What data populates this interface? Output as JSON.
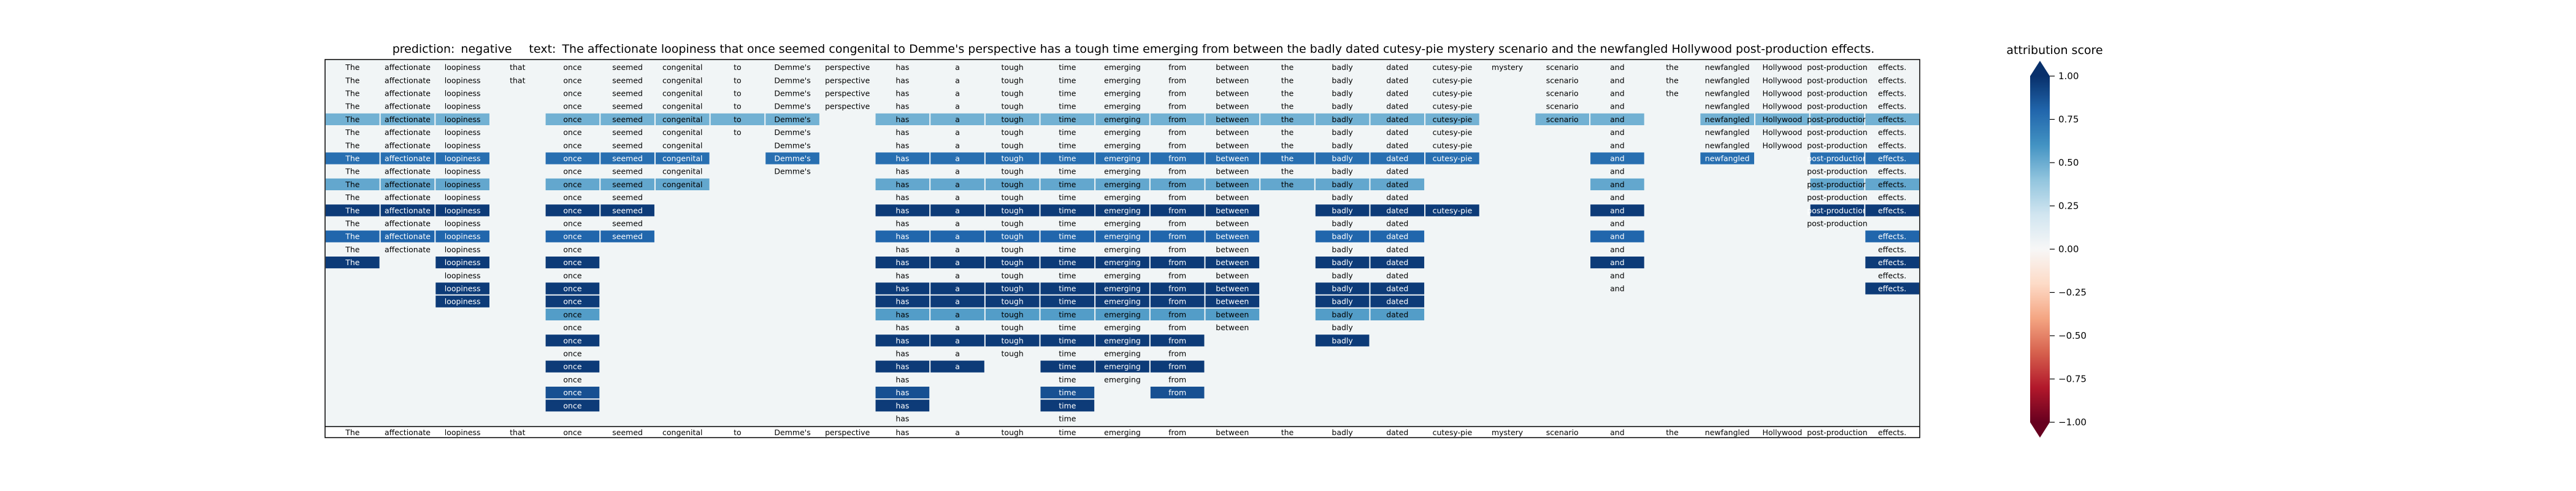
{
  "title": {
    "prediction_label": "prediction:",
    "prediction_value": "negative",
    "text_label": "text:",
    "text_value": "The affectionate loopiness that once seemed congenital to Demme's perspective has a tough time emerging from between the badly dated cutesy-pie mystery scenario and the newfangled Hollywood post-production effects."
  },
  "colorbar": {
    "title": "attribution score",
    "ticks": [
      "1.00",
      "0.75",
      "0.50",
      "0.25",
      "0.00",
      "−0.25",
      "−0.50",
      "−0.75",
      "−1.00"
    ],
    "tick_values": [
      1.0,
      0.75,
      0.5,
      0.25,
      0.0,
      -0.25,
      -0.5,
      -0.75,
      -1.0
    ],
    "colors": [
      "#08306b",
      "#2166ac",
      "#4393c3",
      "#92c5de",
      "#d1e5f0",
      "#f7f7f7",
      "#fddbc7",
      "#f4a582",
      "#d6604d",
      "#b2182b",
      "#67001f"
    ],
    "vmin": -1.0,
    "vmax": 1.0
  },
  "chart_data": {
    "type": "heatmap",
    "description_rows": "Each row is a progressively reduced version of the sentence; empty cells are removed tokens. Cell value = attribution score in [-1, 1].",
    "tokens": [
      "The",
      "affectionate",
      "loopiness",
      "that",
      "once",
      "seemed",
      "congenital",
      "to",
      "Demme's",
      "perspective",
      "has",
      "a",
      "tough",
      "time",
      "emerging",
      "from",
      "between",
      "the",
      "badly",
      "dated",
      "cutesy-pie",
      "mystery",
      "scenario",
      "and",
      "the",
      "newfangled",
      "Hollywood",
      "post-production",
      "effects."
    ],
    "rows": [
      {
        "present": [
          0,
          1,
          2,
          3,
          4,
          5,
          6,
          7,
          8,
          9,
          10,
          11,
          12,
          13,
          14,
          15,
          16,
          17,
          18,
          19,
          20,
          21,
          22,
          23,
          24,
          25,
          26,
          27,
          28
        ],
        "values": {}
      },
      {
        "present": [
          0,
          1,
          2,
          3,
          4,
          5,
          6,
          7,
          8,
          9,
          10,
          11,
          12,
          13,
          14,
          15,
          16,
          17,
          18,
          19,
          20,
          22,
          23,
          24,
          25,
          26,
          27,
          28
        ],
        "values": {}
      },
      {
        "present": [
          0,
          1,
          2,
          4,
          5,
          6,
          7,
          8,
          9,
          10,
          11,
          12,
          13,
          14,
          15,
          16,
          17,
          18,
          19,
          20,
          22,
          23,
          24,
          25,
          26,
          27,
          28
        ],
        "values": {}
      },
      {
        "present": [
          0,
          1,
          2,
          4,
          5,
          6,
          7,
          8,
          9,
          10,
          11,
          12,
          13,
          14,
          15,
          16,
          17,
          18,
          19,
          20,
          22,
          23,
          25,
          26,
          27,
          28
        ],
        "values": {}
      },
      {
        "present": [
          0,
          1,
          2,
          4,
          5,
          6,
          7,
          8,
          10,
          11,
          12,
          13,
          14,
          15,
          16,
          17,
          18,
          19,
          20,
          22,
          23,
          25,
          26,
          27,
          28
        ],
        "values": {
          "0": 0.35,
          "1": 0.35,
          "2": 0.35,
          "4": 0.35,
          "5": 0.35,
          "6": 0.35,
          "7": 0.35,
          "8": 0.35,
          "10": 0.35,
          "11": 0.35,
          "12": 0.35,
          "13": 0.35,
          "14": 0.35,
          "15": 0.35,
          "16": 0.35,
          "17": 0.35,
          "18": 0.35,
          "19": 0.35,
          "20": 0.35,
          "22": 0.35,
          "23": 0.35,
          "25": 0.35,
          "26": 0.35,
          "27": 0.35,
          "28": 0.35
        }
      },
      {
        "present": [
          0,
          1,
          2,
          4,
          5,
          6,
          7,
          8,
          10,
          11,
          12,
          13,
          14,
          15,
          16,
          17,
          18,
          19,
          20,
          23,
          25,
          26,
          27,
          28
        ],
        "values": {}
      },
      {
        "present": [
          0,
          1,
          2,
          4,
          5,
          6,
          8,
          10,
          11,
          12,
          13,
          14,
          15,
          16,
          17,
          18,
          19,
          20,
          23,
          25,
          26,
          27,
          28
        ],
        "values": {}
      },
      {
        "present": [
          0,
          1,
          2,
          4,
          5,
          6,
          8,
          10,
          11,
          12,
          13,
          14,
          15,
          16,
          17,
          18,
          19,
          20,
          23,
          25,
          27,
          28
        ],
        "values": {
          "0": 0.7,
          "1": 0.7,
          "2": 0.7,
          "4": 0.7,
          "5": 0.7,
          "6": 0.7,
          "8": 0.7,
          "10": 0.7,
          "11": 0.7,
          "12": 0.7,
          "13": 0.7,
          "14": 0.7,
          "15": 0.7,
          "16": 0.7,
          "17": 0.7,
          "18": 0.7,
          "19": 0.7,
          "20": 0.7,
          "23": 0.7,
          "25": 0.7,
          "27": 0.7,
          "28": 0.7
        }
      },
      {
        "present": [
          0,
          1,
          2,
          4,
          5,
          6,
          8,
          10,
          11,
          12,
          13,
          14,
          15,
          16,
          17,
          18,
          19,
          23,
          27,
          28
        ],
        "values": {}
      },
      {
        "present": [
          0,
          1,
          2,
          4,
          5,
          6,
          10,
          11,
          12,
          13,
          14,
          15,
          16,
          17,
          18,
          19,
          23,
          27,
          28
        ],
        "values": {
          "0": 0.4,
          "1": 0.4,
          "2": 0.4,
          "4": 0.4,
          "5": 0.4,
          "6": 0.4,
          "10": 0.4,
          "11": 0.4,
          "12": 0.4,
          "13": 0.4,
          "14": 0.4,
          "15": 0.4,
          "16": 0.4,
          "17": 0.4,
          "18": 0.4,
          "19": 0.4,
          "23": 0.4,
          "27": 0.4,
          "28": 0.4
        }
      },
      {
        "present": [
          0,
          1,
          2,
          4,
          5,
          10,
          11,
          12,
          13,
          14,
          15,
          16,
          18,
          19,
          23,
          27,
          28
        ],
        "values": {}
      },
      {
        "present": [
          0,
          1,
          2,
          4,
          5,
          10,
          11,
          12,
          13,
          14,
          15,
          16,
          18,
          19,
          20,
          23,
          27,
          28
        ],
        "values": {
          "0": 0.95,
          "1": 0.95,
          "2": 0.95,
          "4": 0.95,
          "5": 0.95,
          "10": 0.95,
          "11": 0.95,
          "12": 0.95,
          "13": 0.95,
          "14": 0.95,
          "15": 0.95,
          "16": 0.95,
          "18": 0.95,
          "19": 0.95,
          "20": 0.95,
          "23": 0.95,
          "27": 0.95,
          "28": 0.95
        }
      },
      {
        "present": [
          0,
          1,
          2,
          4,
          5,
          10,
          11,
          12,
          13,
          14,
          15,
          16,
          18,
          19,
          23,
          27
        ],
        "values": {}
      },
      {
        "present": [
          0,
          1,
          2,
          4,
          5,
          10,
          11,
          12,
          13,
          14,
          15,
          16,
          18,
          19,
          23,
          28
        ],
        "values": {
          "0": 0.75,
          "1": 0.75,
          "2": 0.75,
          "4": 0.75,
          "5": 0.75,
          "10": 0.75,
          "11": 0.75,
          "12": 0.75,
          "13": 0.75,
          "14": 0.75,
          "15": 0.75,
          "16": 0.75,
          "18": 0.75,
          "19": 0.75,
          "23": 0.75,
          "28": 0.75
        }
      },
      {
        "present": [
          0,
          1,
          2,
          4,
          10,
          11,
          12,
          13,
          14,
          15,
          16,
          18,
          19,
          23,
          28
        ],
        "values": {}
      },
      {
        "present": [
          0,
          2,
          4,
          10,
          11,
          12,
          13,
          14,
          15,
          16,
          18,
          19,
          23,
          28
        ],
        "values": {
          "0": 0.95,
          "2": 0.95,
          "4": 0.95,
          "10": 0.95,
          "11": 0.95,
          "12": 0.95,
          "13": 0.95,
          "14": 0.95,
          "15": 0.95,
          "16": 0.95,
          "18": 0.95,
          "19": 0.95,
          "23": 0.95,
          "28": 0.95
        }
      },
      {
        "present": [
          2,
          4,
          10,
          11,
          12,
          13,
          14,
          15,
          16,
          18,
          19,
          23,
          28
        ],
        "values": {}
      },
      {
        "present": [
          2,
          4,
          10,
          11,
          12,
          13,
          14,
          15,
          16,
          18,
          19,
          23,
          28
        ],
        "values": {
          "2": 0.95,
          "4": 0.95,
          "10": 0.95,
          "11": 0.95,
          "12": 0.95,
          "13": 0.95,
          "14": 0.95,
          "15": 0.95,
          "16": 0.95,
          "18": 0.95,
          "19": 0.95,
          "23": 0.05,
          "28": 0.95
        }
      },
      {
        "present": [
          2,
          4,
          10,
          11,
          12,
          13,
          14,
          15,
          16,
          18,
          19
        ],
        "values": {
          "2": 0.95,
          "4": 0.95,
          "10": 0.95,
          "11": 0.95,
          "12": 0.95,
          "13": 0.95,
          "14": 0.95,
          "15": 0.95,
          "16": 0.95,
          "18": 0.95,
          "19": 0.95
        }
      },
      {
        "present": [
          4,
          10,
          11,
          12,
          13,
          14,
          15,
          16,
          18,
          19
        ],
        "values": {
          "4": 0.45,
          "10": 0.45,
          "11": 0.45,
          "12": 0.45,
          "13": 0.45,
          "14": 0.45,
          "15": 0.45,
          "16": 0.45,
          "18": 0.45,
          "19": 0.45
        }
      },
      {
        "present": [
          4,
          10,
          11,
          12,
          13,
          14,
          15,
          16,
          18
        ],
        "values": {}
      },
      {
        "present": [
          4,
          10,
          11,
          12,
          13,
          14,
          15,
          18
        ],
        "values": {
          "4": 0.95,
          "10": 0.95,
          "11": 0.95,
          "12": 0.95,
          "13": 0.95,
          "14": 0.95,
          "15": 0.95,
          "18": 0.95
        }
      },
      {
        "present": [
          4,
          10,
          11,
          12,
          13,
          14,
          15
        ],
        "values": {}
      },
      {
        "present": [
          4,
          10,
          11,
          13,
          14,
          15
        ],
        "values": {
          "4": 0.95,
          "10": 0.95,
          "11": 0.95,
          "13": 0.95,
          "14": 0.95,
          "15": 0.95
        }
      },
      {
        "present": [
          4,
          10,
          13,
          14,
          15
        ],
        "values": {}
      },
      {
        "present": [
          4,
          10,
          13,
          15
        ],
        "values": {
          "4": 0.85,
          "10": 0.85,
          "13": 0.85,
          "15": 0.85
        }
      },
      {
        "present": [
          4,
          10,
          13
        ],
        "values": {
          "4": 0.95,
          "10": 0.95,
          "13": 0.95
        }
      },
      {
        "present": [
          10,
          13
        ],
        "values": {}
      }
    ],
    "bottom_row_tokens": "full sentence repeated below separator line",
    "colorbar_range": [
      -1.0,
      1.0
    ]
  }
}
